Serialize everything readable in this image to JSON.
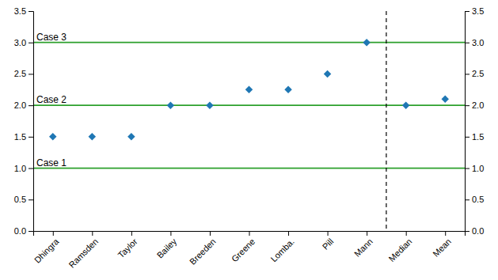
{
  "chart_data": {
    "type": "scatter",
    "categories": [
      "Dhingra",
      "Ramsden",
      "Taylor",
      "Bailey",
      "Breeden",
      "Greene",
      "Lomba.",
      "Pill",
      "Mann",
      "Median",
      "Mean"
    ],
    "values": [
      1.5,
      1.5,
      1.5,
      2.0,
      2.0,
      2.25,
      2.25,
      2.5,
      3.0,
      2.0,
      2.1
    ],
    "marker": "diamond",
    "ylim": [
      0.0,
      3.5
    ],
    "yticks": [
      {
        "value": 0.0,
        "label": "0.0"
      },
      0.5,
      {
        "value": 1.0,
        "label": "1.0"
      },
      1.5,
      {
        "value": 2.0,
        "label": "2.0"
      },
      2.5,
      {
        "value": 3.0,
        "label": "3.0"
      },
      3.5
    ],
    "y2lim": [
      0.0,
      3.5
    ],
    "y2ticks": [
      {
        "value": 0.0,
        "label": "0.0"
      },
      0.5,
      {
        "value": 1.0,
        "label": "1.0"
      },
      1.5,
      {
        "value": 2.0,
        "label": "2.0"
      },
      2.5,
      {
        "value": 3.0,
        "label": "3.0"
      },
      3.5
    ],
    "case_lines": [
      {
        "y": 1.0,
        "label": "Case 1"
      },
      {
        "y": 2.0,
        "label": "Case 2"
      },
      {
        "y": 3.0,
        "label": "Case 3"
      }
    ],
    "vlines": [
      {
        "x": 8.5,
        "line_style": "dashed"
      }
    ],
    "grid": false
  }
}
